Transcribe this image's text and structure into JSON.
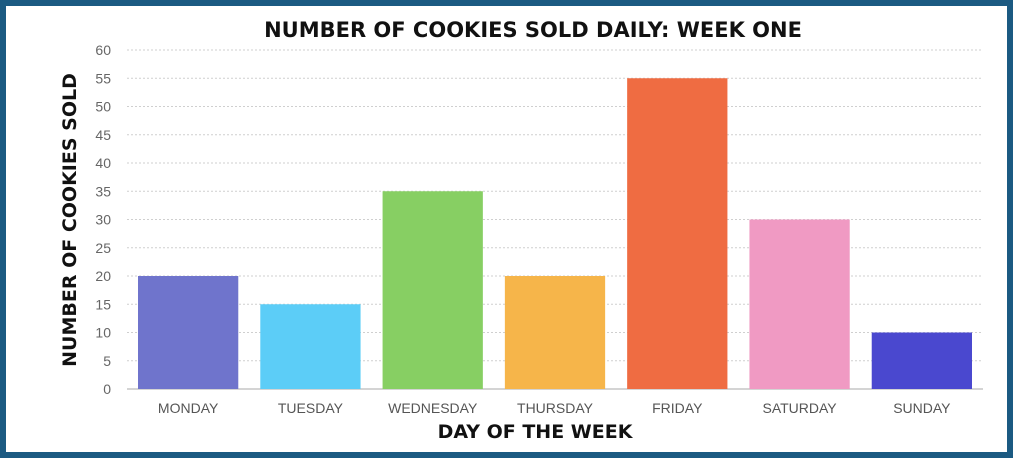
{
  "chart_data": {
    "type": "bar",
    "title": "NUMBER OF COOKIES SOLD DAILY: WEEK ONE",
    "xlabel": "DAY OF THE WEEK",
    "ylabel": "NUMBER OF COOKIES SOLD",
    "categories": [
      "MONDAY",
      "TUESDAY",
      "WEDNESDAY",
      "THURSDAY",
      "FRIDAY",
      "SATURDAY",
      "SUNDAY"
    ],
    "values": [
      20,
      15,
      35,
      20,
      55,
      30,
      10
    ],
    "colors": [
      "#6f74cc",
      "#5ccdf7",
      "#87cf63",
      "#f6b54a",
      "#ef6c42",
      "#f09ac3",
      "#4a48cf"
    ],
    "ylim": [
      0,
      60
    ],
    "yticks": [
      0,
      5,
      10,
      15,
      20,
      25,
      30,
      35,
      40,
      45,
      50,
      55,
      60
    ],
    "grid": true,
    "legend": "none"
  }
}
